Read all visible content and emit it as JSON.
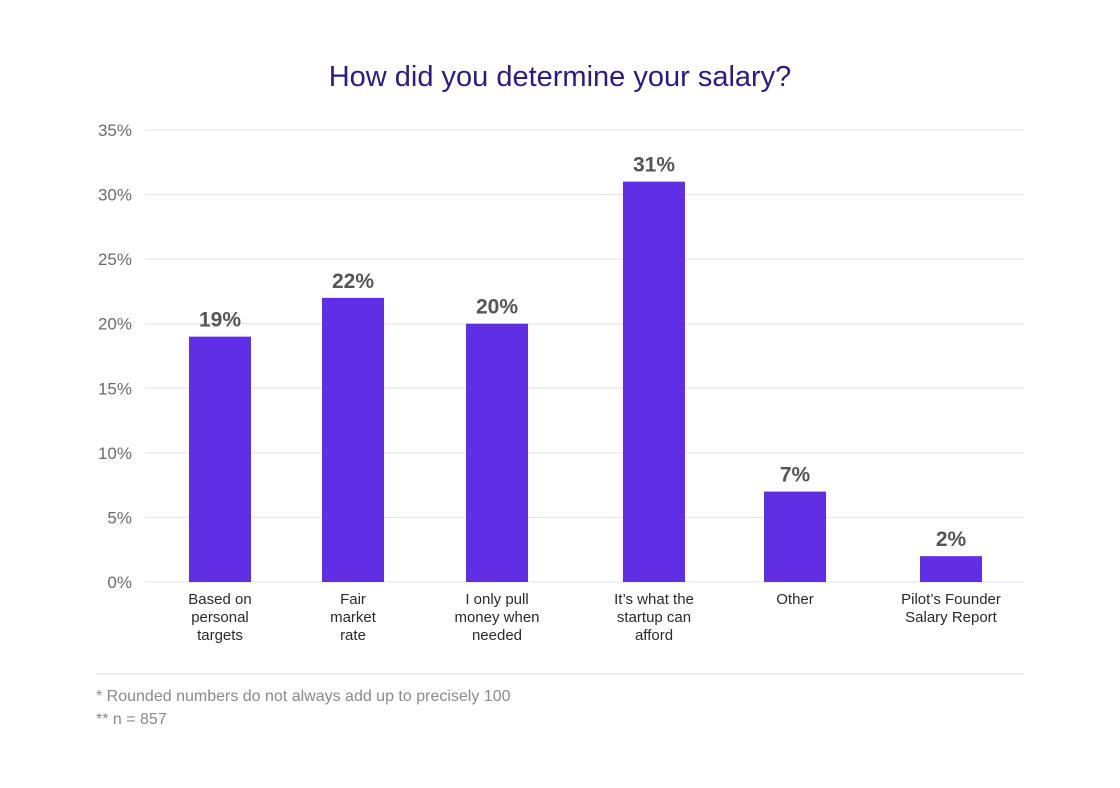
{
  "chart_data": {
    "type": "bar",
    "title": "How did you determine your salary?",
    "xlabel": "",
    "ylabel": "",
    "categories": [
      [
        "Based on",
        "personal",
        "targets"
      ],
      [
        "Fair",
        "market",
        "rate"
      ],
      [
        "I only pull",
        "money when",
        "needed"
      ],
      [
        "It’s what the",
        "startup can",
        "afford"
      ],
      [
        "Other"
      ],
      [
        "Pilot’s Founder",
        "Salary Report"
      ]
    ],
    "values": [
      19,
      22,
      20,
      31,
      7,
      2
    ],
    "value_labels": [
      "19%",
      "22%",
      "20%",
      "31%",
      "7%",
      "2%"
    ],
    "ylim": [
      0,
      35
    ],
    "yticks": [
      0,
      5,
      10,
      15,
      20,
      25,
      30,
      35
    ],
    "ytick_labels": [
      "0%",
      "5%",
      "10%",
      "15%",
      "20%",
      "25%",
      "30%",
      "35%"
    ],
    "grid": true,
    "bar_color": "#5f2ee5"
  },
  "footnotes": [
    "* Rounded numbers do not always add up to precisely 100",
    "** n = 857"
  ]
}
